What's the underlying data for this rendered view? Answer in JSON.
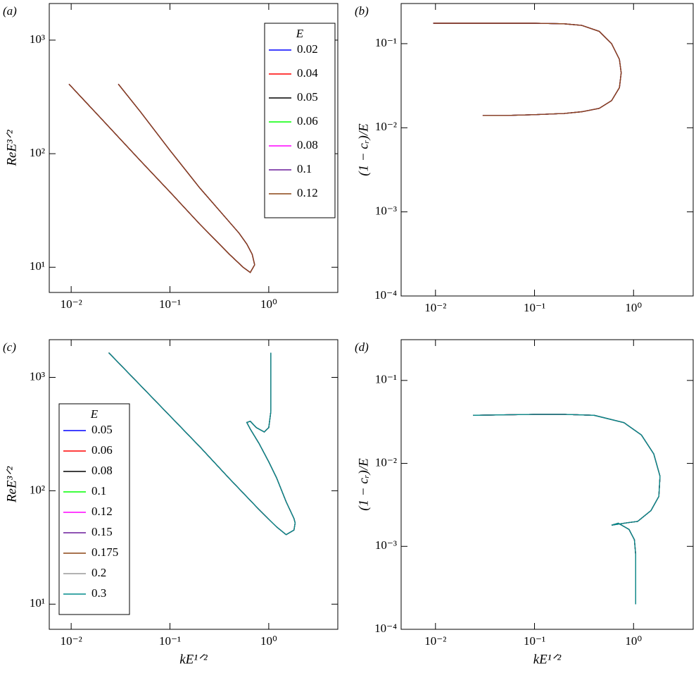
{
  "chart_data": [
    {
      "type": "line",
      "panel_label": "(a)",
      "y_label": "ReE³ᐟ²",
      "log_x": true,
      "log_y": true,
      "legend": "upper right",
      "legend_title": "E",
      "xlim": [
        0.006,
        5
      ],
      "ylim": [
        6,
        2100
      ],
      "xticks": [
        {
          "value": 0.01,
          "label": "10⁻²"
        },
        {
          "value": 0.1,
          "label": "10⁻¹"
        },
        {
          "value": 1,
          "label": "10⁰"
        }
      ],
      "yticks": [
        {
          "value": 10,
          "label": "10¹"
        },
        {
          "value": 100,
          "label": "10²"
        },
        {
          "value": 1000,
          "label": "10³"
        }
      ],
      "x": [
        0.0095,
        0.02,
        0.05,
        0.1,
        0.2,
        0.4,
        0.55,
        0.65,
        0.72,
        0.68,
        0.6,
        0.5,
        0.4,
        0.2,
        0.1,
        0.05,
        0.03
      ],
      "series": [
        {
          "name": "0.02",
          "color": "#0000ff",
          "values": [
            410,
            205,
            87,
            46,
            24,
            13,
            10,
            9,
            10.5,
            13,
            16,
            20,
            25,
            50,
            107,
            235,
            410
          ]
        },
        {
          "name": "0.04",
          "color": "#ff0000",
          "values": [
            410,
            205,
            87,
            46,
            24,
            13,
            10,
            9,
            10.5,
            13,
            16,
            20,
            25,
            50,
            107,
            235,
            410
          ]
        },
        {
          "name": "0.05",
          "color": "#000000",
          "values": [
            410,
            205,
            87,
            46,
            24,
            13,
            10,
            9,
            10.5,
            13,
            16,
            20,
            25,
            50,
            107,
            235,
            410
          ]
        },
        {
          "name": "0.06",
          "color": "#00ff00",
          "values": [
            410,
            205,
            87,
            46,
            24,
            13,
            10,
            9,
            10.5,
            13,
            16,
            20,
            25,
            50,
            107,
            235,
            410
          ]
        },
        {
          "name": "0.08",
          "color": "#ff00ff",
          "values": [
            410,
            205,
            87,
            46,
            24,
            13,
            10,
            9,
            10.5,
            13,
            16,
            20,
            25,
            50,
            107,
            235,
            410
          ]
        },
        {
          "name": "0.1",
          "color": "#6a1b9a",
          "values": [
            410,
            205,
            87,
            46,
            24,
            13,
            10,
            9,
            10.5,
            13,
            16,
            20,
            25,
            50,
            107,
            235,
            410
          ]
        },
        {
          "name": "0.12",
          "color": "#8b4513",
          "values": [
            410,
            205,
            87,
            46,
            24,
            13,
            10,
            9,
            10.5,
            13,
            16,
            20,
            25,
            50,
            107,
            235,
            410
          ]
        }
      ]
    },
    {
      "type": "line",
      "panel_label": "(b)",
      "y_label": "(1 − cᵣ)/E",
      "log_x": true,
      "log_y": true,
      "xlim": [
        0.0045,
        4
      ],
      "ylim": [
        0.0001,
        0.3
      ],
      "xticks": [
        {
          "value": 0.01,
          "label": "10⁻²"
        },
        {
          "value": 0.1,
          "label": "10⁻¹"
        },
        {
          "value": 1,
          "label": "10⁰"
        }
      ],
      "yticks": [
        {
          "value": 0.0001,
          "label": "10⁻⁴"
        },
        {
          "value": 0.001,
          "label": "10⁻³"
        },
        {
          "value": 0.01,
          "label": "10⁻²"
        },
        {
          "value": 0.1,
          "label": "10⁻¹"
        }
      ],
      "x": [
        0.0095,
        0.05,
        0.1,
        0.2,
        0.3,
        0.45,
        0.6,
        0.72,
        0.75,
        0.72,
        0.6,
        0.45,
        0.3,
        0.2,
        0.1,
        0.05,
        0.03
      ],
      "series": [
        {
          "color": "#0000ff",
          "values": [
            0.175,
            0.175,
            0.175,
            0.172,
            0.165,
            0.14,
            0.1,
            0.065,
            0.045,
            0.03,
            0.021,
            0.017,
            0.0155,
            0.0148,
            0.0143,
            0.014,
            0.014
          ]
        },
        {
          "color": "#ff0000",
          "values": [
            0.175,
            0.175,
            0.175,
            0.172,
            0.165,
            0.14,
            0.1,
            0.065,
            0.045,
            0.03,
            0.021,
            0.017,
            0.0155,
            0.0148,
            0.0143,
            0.014,
            0.014
          ]
        },
        {
          "color": "#000000",
          "values": [
            0.175,
            0.175,
            0.175,
            0.172,
            0.165,
            0.14,
            0.1,
            0.065,
            0.045,
            0.03,
            0.021,
            0.017,
            0.0155,
            0.0148,
            0.0143,
            0.014,
            0.014
          ]
        },
        {
          "color": "#00ff00",
          "values": [
            0.175,
            0.175,
            0.175,
            0.172,
            0.165,
            0.14,
            0.1,
            0.065,
            0.045,
            0.03,
            0.021,
            0.017,
            0.0155,
            0.0148,
            0.0143,
            0.014,
            0.014
          ]
        },
        {
          "color": "#ff00ff",
          "values": [
            0.175,
            0.175,
            0.175,
            0.172,
            0.165,
            0.14,
            0.1,
            0.065,
            0.045,
            0.03,
            0.021,
            0.017,
            0.0155,
            0.0148,
            0.0143,
            0.014,
            0.014
          ]
        },
        {
          "color": "#6a1b9a",
          "values": [
            0.175,
            0.175,
            0.175,
            0.172,
            0.165,
            0.14,
            0.1,
            0.065,
            0.045,
            0.03,
            0.021,
            0.017,
            0.0155,
            0.0148,
            0.0143,
            0.014,
            0.014
          ]
        },
        {
          "color": "#8b4513",
          "values": [
            0.175,
            0.175,
            0.175,
            0.172,
            0.165,
            0.14,
            0.1,
            0.065,
            0.045,
            0.03,
            0.021,
            0.017,
            0.0155,
            0.0148,
            0.0143,
            0.014,
            0.014
          ]
        }
      ]
    },
    {
      "type": "line",
      "panel_label": "(c)",
      "x_label": "kE¹ᐟ²",
      "y_label": "ReE³ᐟ²",
      "log_x": true,
      "log_y": true,
      "legend": "lower left",
      "legend_title": "E",
      "xlim": [
        0.006,
        5
      ],
      "ylim": [
        6,
        2150
      ],
      "xticks": [
        {
          "value": 0.01,
          "label": "10⁻²"
        },
        {
          "value": 0.1,
          "label": "10⁻¹"
        },
        {
          "value": 1,
          "label": "10⁰"
        }
      ],
      "yticks": [
        {
          "value": 10,
          "label": "10¹"
        },
        {
          "value": 100,
          "label": "10²"
        },
        {
          "value": 1000,
          "label": "10³"
        }
      ],
      "x": [
        0.024,
        0.05,
        0.1,
        0.2,
        0.4,
        0.8,
        1.2,
        1.5,
        1.8,
        1.85,
        1.8,
        1.5,
        1.2,
        1.0,
        0.8,
        0.65,
        0.6,
        0.65,
        0.75,
        0.9,
        1.0,
        1.05,
        1.05,
        1.05
      ],
      "series": [
        {
          "name": "0.05",
          "color": "#0000ff",
          "values": [
            1650,
            853,
            457,
            245,
            128,
            68,
            48,
            41,
            45,
            52,
            57,
            80,
            130,
            180,
            260,
            350,
            400,
            410,
            360,
            330,
            360,
            500,
            900,
            1650
          ]
        },
        {
          "name": "0.06",
          "color": "#ff0000",
          "values": [
            1650,
            853,
            457,
            245,
            128,
            68,
            48,
            41,
            45,
            52,
            57,
            80,
            130,
            180,
            260,
            350,
            400,
            410,
            360,
            330,
            360,
            500,
            900,
            1650
          ]
        },
        {
          "name": "0.08",
          "color": "#000000",
          "values": [
            1650,
            853,
            457,
            245,
            128,
            68,
            48,
            41,
            45,
            52,
            57,
            80,
            130,
            180,
            260,
            350,
            400,
            410,
            360,
            330,
            360,
            500,
            900,
            1650
          ]
        },
        {
          "name": "0.1",
          "color": "#00ff00",
          "values": [
            1650,
            853,
            457,
            245,
            128,
            68,
            48,
            41,
            45,
            52,
            57,
            80,
            130,
            180,
            260,
            350,
            400,
            410,
            360,
            330,
            360,
            500,
            900,
            1650
          ]
        },
        {
          "name": "0.12",
          "color": "#ff00ff",
          "values": [
            1650,
            853,
            457,
            245,
            128,
            68,
            48,
            41,
            45,
            52,
            57,
            80,
            130,
            180,
            260,
            350,
            400,
            410,
            360,
            330,
            360,
            500,
            900,
            1650
          ]
        },
        {
          "name": "0.15",
          "color": "#6a1b9a",
          "values": [
            1650,
            853,
            457,
            245,
            128,
            68,
            48,
            41,
            45,
            52,
            57,
            80,
            130,
            180,
            260,
            350,
            400,
            410,
            360,
            330,
            360,
            500,
            900,
            1650
          ]
        },
        {
          "name": "0.175",
          "color": "#8b4513",
          "values": [
            1650,
            853,
            457,
            245,
            128,
            68,
            48,
            41,
            45,
            52,
            57,
            80,
            130,
            180,
            260,
            350,
            400,
            410,
            360,
            330,
            360,
            500,
            900,
            1650
          ]
        },
        {
          "name": "0.2",
          "color": "#999999",
          "values": [
            1650,
            853,
            457,
            245,
            128,
            68,
            48,
            41,
            45,
            52,
            57,
            80,
            130,
            180,
            260,
            350,
            400,
            410,
            360,
            330,
            360,
            500,
            900,
            1650
          ]
        },
        {
          "name": "0.3",
          "color": "#008b8b",
          "values": [
            1650,
            853,
            457,
            245,
            128,
            68,
            48,
            41,
            45,
            52,
            57,
            80,
            130,
            180,
            260,
            350,
            400,
            410,
            360,
            330,
            360,
            500,
            900,
            1650
          ]
        }
      ]
    },
    {
      "type": "line",
      "panel_label": "(d)",
      "x_label": "kE¹ᐟ²",
      "y_label": "(1 − cᵣ)/E",
      "log_x": true,
      "log_y": true,
      "xlim": [
        0.0045,
        4
      ],
      "ylim": [
        0.0001,
        0.31
      ],
      "xticks": [
        {
          "value": 0.01,
          "label": "10⁻²"
        },
        {
          "value": 0.1,
          "label": "10⁻¹"
        },
        {
          "value": 1,
          "label": "10⁰"
        }
      ],
      "yticks": [
        {
          "value": 0.0001,
          "label": "10⁻⁴"
        },
        {
          "value": 0.001,
          "label": "10⁻³"
        },
        {
          "value": 0.01,
          "label": "10⁻²"
        },
        {
          "value": 0.1,
          "label": "10⁻¹"
        }
      ],
      "x": [
        0.024,
        0.1,
        0.2,
        0.4,
        0.8,
        1.2,
        1.6,
        1.85,
        1.8,
        1.5,
        1.1,
        0.8,
        0.6,
        0.7,
        0.9,
        1.02,
        1.05,
        1.05,
        1.05
      ],
      "series": [
        {
          "color": "#0000ff",
          "values": [
            0.038,
            0.039,
            0.039,
            0.038,
            0.031,
            0.022,
            0.013,
            0.007,
            0.004,
            0.0027,
            0.002,
            0.0019,
            0.0018,
            0.0019,
            0.0016,
            0.0012,
            0.0008,
            0.0005,
            0.0002
          ]
        },
        {
          "color": "#ff0000",
          "values": [
            0.038,
            0.039,
            0.039,
            0.038,
            0.031,
            0.022,
            0.013,
            0.007,
            0.004,
            0.0027,
            0.002,
            0.0019,
            0.0018,
            0.0019,
            0.0016,
            0.0012,
            0.0008,
            0.0005,
            0.0002
          ]
        },
        {
          "color": "#000000",
          "values": [
            0.038,
            0.039,
            0.039,
            0.038,
            0.031,
            0.022,
            0.013,
            0.007,
            0.004,
            0.0027,
            0.002,
            0.0019,
            0.0018,
            0.0019,
            0.0016,
            0.0012,
            0.0008,
            0.0005,
            0.0002
          ]
        },
        {
          "color": "#00ff00",
          "values": [
            0.038,
            0.039,
            0.039,
            0.038,
            0.031,
            0.022,
            0.013,
            0.007,
            0.004,
            0.0027,
            0.002,
            0.0019,
            0.0018,
            0.0019,
            0.0016,
            0.0012,
            0.0008,
            0.0005,
            0.0002
          ]
        },
        {
          "color": "#ff00ff",
          "values": [
            0.038,
            0.039,
            0.039,
            0.038,
            0.031,
            0.022,
            0.013,
            0.007,
            0.004,
            0.0027,
            0.002,
            0.0019,
            0.0018,
            0.0019,
            0.0016,
            0.0012,
            0.0008,
            0.0005,
            0.0002
          ]
        },
        {
          "color": "#6a1b9a",
          "values": [
            0.038,
            0.039,
            0.039,
            0.038,
            0.031,
            0.022,
            0.013,
            0.007,
            0.004,
            0.0027,
            0.002,
            0.0019,
            0.0018,
            0.0019,
            0.0016,
            0.0012,
            0.0008,
            0.0005,
            0.0002
          ]
        },
        {
          "color": "#8b4513",
          "values": [
            0.038,
            0.039,
            0.039,
            0.038,
            0.031,
            0.022,
            0.013,
            0.007,
            0.004,
            0.0027,
            0.002,
            0.0019,
            0.0018,
            0.0019,
            0.0016,
            0.0012,
            0.0008,
            0.0005,
            0.0002
          ]
        },
        {
          "color": "#999999",
          "values": [
            0.038,
            0.039,
            0.039,
            0.038,
            0.031,
            0.022,
            0.013,
            0.007,
            0.004,
            0.0027,
            0.002,
            0.0019,
            0.0018,
            0.0019,
            0.0016,
            0.0012,
            0.0008,
            0.0005,
            0.0002
          ]
        },
        {
          "color": "#008b8b",
          "values": [
            0.038,
            0.039,
            0.039,
            0.038,
            0.031,
            0.022,
            0.013,
            0.007,
            0.004,
            0.0027,
            0.002,
            0.0019,
            0.0018,
            0.0019,
            0.0016,
            0.0012,
            0.0008,
            0.0005,
            0.0002
          ]
        }
      ]
    }
  ]
}
